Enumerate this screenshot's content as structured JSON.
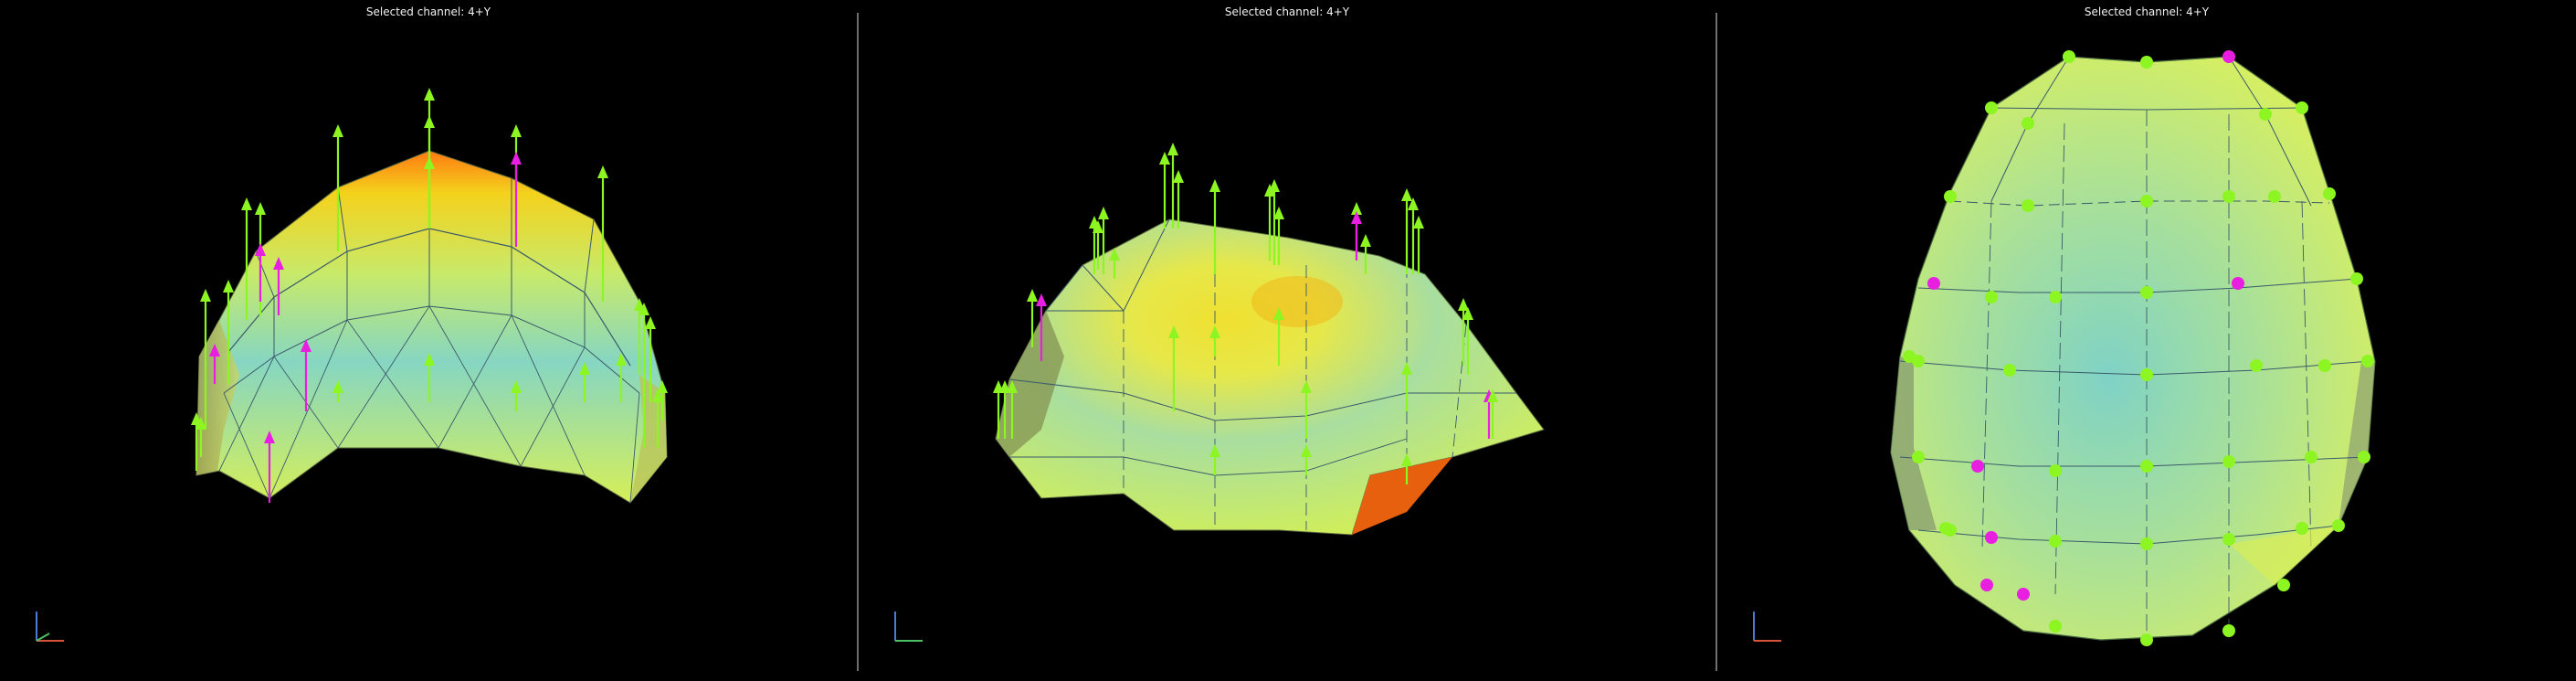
{
  "viewports": [
    {
      "title": "Selected channel: 4+Y",
      "view": "side",
      "axes_icon": "axes-triad-icon"
    },
    {
      "title": "Selected channel: 4+Y",
      "view": "front",
      "axes_icon": "axes-triad-icon"
    },
    {
      "title": "Selected channel: 4+Y",
      "view": "top",
      "axes_icon": "axes-triad-icon"
    }
  ],
  "colors": {
    "background": "#000000",
    "separator": "#6e6e6e",
    "arrow_normal": "#8cf522",
    "arrow_selected": "#e81fe0",
    "mesh_cool": "#7fd6c8",
    "mesh_mid": "#d8f060",
    "mesh_hot": "#ff6a10"
  }
}
